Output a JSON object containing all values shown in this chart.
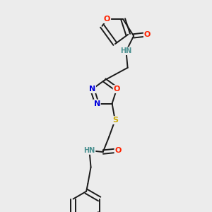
{
  "background_color": "#ececec",
  "colors": {
    "C": "#1a1a1a",
    "O": "#ff2200",
    "N": "#0000dd",
    "S": "#ccaa00",
    "HN": "#4a9090",
    "bond": "#1a1a1a"
  },
  "lw": 1.4,
  "fs": 8.0,
  "fs_small": 7.0
}
